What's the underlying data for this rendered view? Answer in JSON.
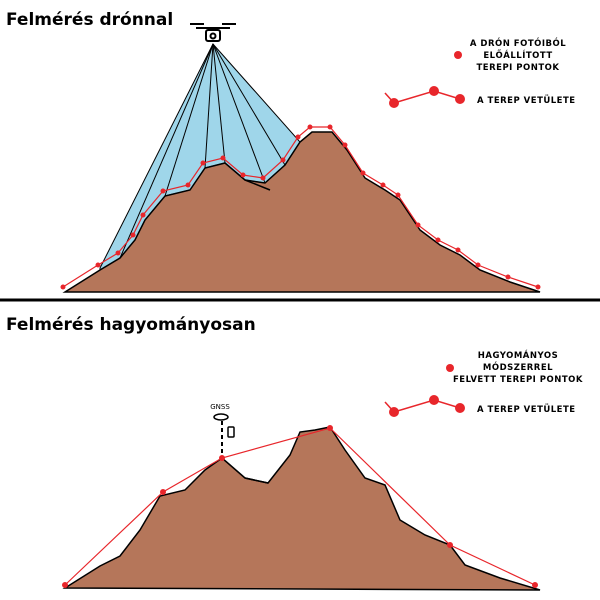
{
  "panels": [
    {
      "title": "Felmérés drónnal",
      "legend_points": [
        "A DRÓN FOTÓIBÓL",
        "ELŐÁLLÍTOTT",
        "TEREPI PONTOK"
      ],
      "legend_line": "A TEREP VETÜLETE"
    },
    {
      "title": "Felmérés hagyományosan",
      "legend_points": [
        "HAGYOMÁNYOS",
        "MÓDSZERREL",
        "FELVETT TEREPI PONTOK"
      ],
      "legend_line": "A TEREP VETÜLETE",
      "instrument": "GNSS"
    }
  ]
}
